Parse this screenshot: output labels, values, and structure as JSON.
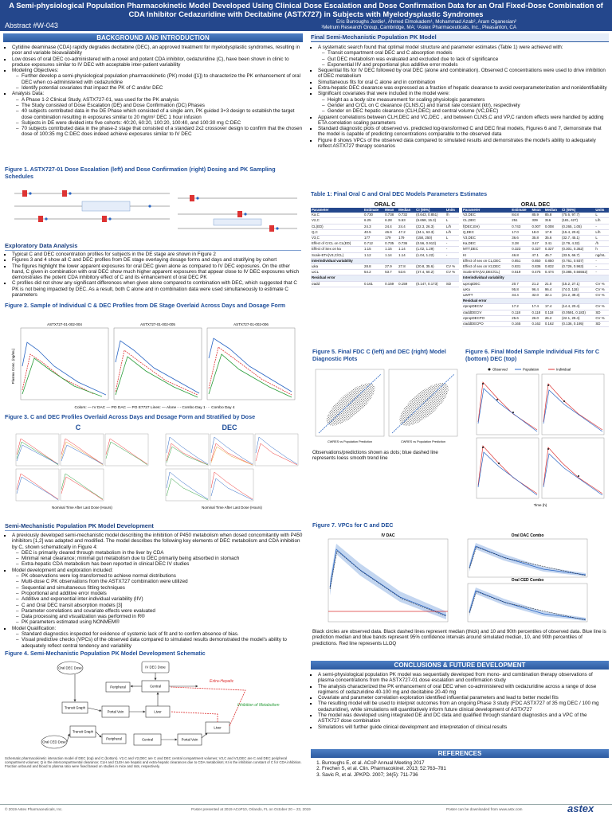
{
  "header": {
    "title": "A Semi-physiological Population Pharmacokinetic Model Developed Using Clinical Dose Escalation and Dose Confirmation Data for an Oral Fixed-Dose Combination of CDA Inhibitor Cedazuridine with Decitabine (ASTX727) in Subjects with Myelodysplastic Syndromes",
    "abstract": "Abstract #W-043",
    "authors": "Eric Burroughs Jordie¹, Ahmed Elmokadem¹, Mohammad Azab², Aram Oganesian²",
    "affiliations": "¹Metrum Research Group, Cambridge, MA; ²Astex Pharmaceuticals, Inc., Pleasanton, CA"
  },
  "background": {
    "heading": "BACKGROUND AND INTRODUCTION",
    "items": [
      {
        "text": "Cytidine deaminase (CDA) rapidly degrades decitabine (DEC), an approved treatment for myelodysplastic syndromes, resulting in poor and variable bioavailability"
      },
      {
        "text": "Low doses of oral DEC co-administered with a novel and potent CDA inhibitor, cedazuridine (C), have been shown in clinic to produce exposures similar to IV DEC with acceptable inter-patient variability"
      },
      {
        "text": "Modeling Objectives:",
        "sub": [
          "Further develop a semi-physiological population pharmacokinetic (PK) model ([1]) to characterize the PK enhancement of oral DEC when co-administered with cedazuridine",
          "Identify potential covariates that impact the PK of C and/or DEC"
        ]
      },
      {
        "text": "Analysis Data:",
        "sub": [
          "A Phase 1-2 Clinical Study, ASTX727-01, was used for the PK analysis",
          "The Study consisted of Dose Escalation (DE) and Dose Confirmation (DC) Phases",
          "40 subjects contributed data in the DE Phase which consisted of a single arm, PK guided 3+3 design to establish the target dose combination resulting in exposures similar to 20 mg/m² DEC 1 hour infusion",
          "Subjects in DE were divided into five cohorts: 40:20, 60:20, 100:20, 100:40, and 100:30 mg C:DEC",
          "70 subjects contributed data in the phase-2 stage that consisted of a standard 2x2 crossover design to confirm that the chosen dose of 100:35 mg C:DEC does indeed achieve exposures similar to IV DEC"
        ]
      }
    ]
  },
  "figure1": {
    "caption": "Figure 1. ASTX727-01 Dose Escalation (left) and Dose Confirmation (right) Dosing and PK Sampling Schedules"
  },
  "exploratory": {
    "heading": "Exploratory Data Analysis",
    "items": [
      {
        "text": "Typical C and DEC concentration profiles for subjects in the DE stage are shown in Figure 2"
      },
      {
        "text": "Figures 3 and 4 show all C and DEC profiles from DE stage overlaying dosage forms and days and stratifying by cohort"
      },
      {
        "text": "The figures highlight the lower apparent exposures for oral DEC given alone as compared to IV DEC exposures. On the other hand, C given in combination with oral DEC show much higher apparent exposures that appear close to IV DEC exposures which demonstrates the potent CDA inhibitory effect of C and its enhancement of oral DEC PK"
      },
      {
        "text": "C profiles did not show any significant differences when given alone compared to combination with DEC, which suggested that C PK is not being impacted by DEC. As a result, both C alone and in combination data were used simultaneously to estimate C parameters"
      }
    ]
  },
  "figure2": {
    "caption": "Figure 2. Sample of Individual C & DEC Profiles from DE Stage Overlaid Across Days and Dosage Form",
    "panels": [
      "ASTX727-01-002-004",
      "ASTX727-01-002-005",
      "ASTX727-01-002-006"
    ],
    "y_label": "Plasma Conc. (ng/mL)",
    "legend": "Colors: — IV DAC — PO DAC — PO E7727    Lines: — Alone - - Combo Day 1 ··· Combo Day 4"
  },
  "figure3": {
    "caption": "Figure 3. C and DEC Profiles Overlaid Across Days and Dosage Form and Stratified by Dose",
    "panels": [
      "C",
      "DEC"
    ],
    "x_label": "Nominal Time After Last Dose (Hours)"
  },
  "model_dev": {
    "heading": "Semi-Mechanistic Population PK Model Development",
    "items": [
      {
        "text": "A previously developed semi-mechanistic model describing the inhibition of P450 metabolism when dosed concomitantly with P450 inhibitors [1,2] was adapted and modified. The model describes the following key elements of DEC metabolism and CDA inhibition by C, shown schematically in Figure 4:",
        "sub": [
          "DEC is primarily cleared through metabolism in the liver by CDA",
          "Minimal renal clearance; minimal gut metabolism due to DEC primarily being absorbed in stomach",
          "Extra-hepatic CDA metabolism has been reported in clinical DEC IV studies"
        ]
      },
      {
        "text": "Model development and exploration included:",
        "sub": [
          "PK observations were log-transformed to achieve normal distributions",
          "Multi-dose C PK observations from the ASTX727 combination were utilized",
          "Sequential and simultaneous fitting techniques",
          "Proportional and additive error models",
          "Additive and exponential inter-individual variability (IIV)",
          "C and Oral DEC transit absorption models [3]",
          "Parameter correlations and covariate effects were evaluated",
          "Data processing and visualization was performed in R®",
          "PK parameters estimated using NONMEM®"
        ]
      },
      {
        "text": "Model Qualification:",
        "sub": [
          "Standard diagnostics inspected for evidence of systemic lack of fit and to confirm absence of bias.",
          "Visual predictive checks (VPCs) of the observed data compared to simulated results demonstrated the model's ability to adequately reflect central tendency and variability"
        ]
      }
    ]
  },
  "figure4": {
    "caption": "Figure 4. Semi-Mechanistic Population PK Model Development Schematic",
    "nodes": [
      "Oral DEC Dose",
      "IV DEC Dose",
      "Central",
      "Peripheral",
      "Transit Graph",
      "Portal Vein",
      "Liver",
      "Oral CED Dose",
      "Central",
      "Peripheral",
      "Transit Graph",
      "Portal Vein",
      "Liver"
    ],
    "labels": [
      "Extra-Hepatic",
      "Inhibition of Metabolism"
    ],
    "note": "Schematic pharmacokinetic interaction model of DEC (top) and C (bottom). V2,C and V2,DEC are C and DEC central compartment volumes; V3,C and V3,DEC are C and DEC peripheral compartment volumes; Q is the intercompartmental clearance; CLH and CLEH are hepatic and extra-hepatic clearances due to CDA metabolism; KI is the inhibition constant of C for CDA inhibition. Fraction unbound and blood to plasma ratio were fixed based on studies in mice and rats, respectively."
  },
  "final_model": {
    "heading": "Final Semi-Mechanistic Population PK Model",
    "items": [
      {
        "text": "A systematic search found that optimal model structure and parameter estimates (Table 1) were achieved with:",
        "sub": [
          "Transit compartment oral DEC and C absorption models",
          "Gut DEC metabolism was evaluated and excluded due to lack of significance",
          "Exponential IIV and proportional plus additive error models"
        ]
      },
      {
        "text": "Sequential fits for IV DEC followed by oral DEC (alone and combination). Observed C concentrations were used to drive inhibition of DEC metabolism"
      },
      {
        "text": "Simultaneous fits for oral C alone and in combination"
      },
      {
        "text": "Extra-hepatic DEC clearance was expressed as a fraction of hepatic clearance to avoid overparameterization and nonidentifiability"
      },
      {
        "text": "Significant covariates that were included in the model were:",
        "sub": [
          "Height as a body size measurement for scaling physiologic parameters",
          "Gender and CrCL on C clearance (CLNS,C) and transit rate constant (ktr), respectively",
          "Gender on DEC hepatic clearance (CLH,DEC) and central volume (VC,DEC)"
        ]
      },
      {
        "text": "Apparent correlations between CLH,DEC and VC,DEC , and between CLNS,C and VP,C random effects were handled by adding ETA correlation scaling parameters"
      },
      {
        "text": "Standard diagnostic plots of observed vs. predicted log-transformed C and DEC final models, Figures 6 and 7, demonstrate that the model is capable of predicting concentrations comparable to the observed data"
      },
      {
        "text": "Figure 8 shows VPCs of the observed data compared to simulated results and demonstrates the model's ability to adequately reflect ASTX727 therapy scenarios"
      }
    ]
  },
  "table1": {
    "caption": "Table 1: Final Oral C and Oral DEC Models Parameters Estimates",
    "oral_c": {
      "title": "ORAL C",
      "headers": [
        "Parameter",
        "Estimate",
        "Mean",
        "Median",
        "CI (95%)",
        "Units"
      ],
      "rows": [
        [
          "Ka,C",
          "0.730",
          "0.738",
          "0.732",
          "(0.643, 0.851)",
          "/h"
        ],
        [
          "V2,C",
          "6.25",
          "6.28",
          "5.53",
          "(5.658, 15.3)",
          "L"
        ],
        [
          "CL(ED)",
          "24.3",
          "24.4",
          "24.4",
          "(22.3, 26.3)",
          "L/h"
        ],
        [
          "Q,C",
          "40.5",
          "46.9",
          "47.2",
          "(34.1, 63.3)",
          "L/h"
        ],
        [
          "V3,C",
          "177",
          "179",
          "179",
          "(158, 250)",
          "L"
        ],
        [
          "Effect of CrCL on CL(ED)",
          "0.712",
          "0.735",
          "0.736",
          "(0.56, 0.913)",
          "-"
        ],
        [
          "Effect of Sex on ka",
          "1.15",
          "1.15",
          "1.14",
          "(1.02, 1.29)",
          "-"
        ],
        [
          "Scale-ETA(V3,C/CL)",
          "1.12",
          "1.14",
          "1.14",
          "(1.04, 1.22)",
          "-"
        ],
        [
          "Interindividual variability"
        ],
        [
          "ωka",
          "28.8",
          "27.9",
          "27.8",
          "(20.8, 35.6)",
          "CV %"
        ],
        [
          "ωCL",
          "54.2",
          "53.7",
          "53.6",
          "(47.4, 60.2)",
          "CV %"
        ],
        [
          "Residual error"
        ],
        [
          "σadd",
          "0.161",
          "0.159",
          "0.159",
          "(0.147, 0.173)",
          "SD"
        ]
      ]
    },
    "oral_dec": {
      "title": "ORAL DEC",
      "headers": [
        "Parameter",
        "Estimate",
        "Mean",
        "Median",
        "CI (95%)",
        "Units"
      ],
      "rows": [
        [
          "V2,DEC",
          "84.8",
          "85.9",
          "85.8",
          "(75.6, 97.7)",
          "L"
        ],
        [
          "CL,DEC",
          "251",
          "339",
          "316",
          "(181, 427)",
          "L/h"
        ],
        [
          "f(DEC,EH)",
          "0.743",
          "0.007",
          "0.008",
          "(0.265, 1.05)",
          "-"
        ],
        [
          "Q,DEC",
          "17.0",
          "18.0",
          "17.9",
          "(15.4, 20.6)",
          "L/h"
        ],
        [
          "V3,DEC",
          "36.6",
          "35.8",
          "35.6",
          "(32.7, 45.1)",
          "L"
        ],
        [
          "Ka,DEC",
          "3.28",
          "3.47",
          "3.41",
          "(2.79, 4.32)",
          "/h"
        ],
        [
          "MTT,DEC",
          "0.323",
          "0.327",
          "0.327",
          "(0.301, 0.352)",
          "h"
        ],
        [
          "KI",
          "46.8",
          "47.1",
          "45.7",
          "(33.5, 66.7)",
          "ng/mL"
        ],
        [
          "Effect of sex on CL,DEC",
          "0.851",
          "0.850",
          "0.850",
          "(0.761, 0.937)",
          "-"
        ],
        [
          "Effect of sex on V2,DEC",
          "0.831",
          "0.836",
          "0.832",
          "(0.726, 0.963)",
          "-"
        ],
        [
          "Scale-ETA(V2,DEC/CL)",
          "0.519",
          "0.475",
          "0.474",
          "(0.385, 0.56552)",
          "-"
        ],
        [
          "Interindividual variability"
        ],
        [
          "ωpropDEC",
          "20.7",
          "21.2",
          "21.0",
          "(15.2, 27.1)",
          "CV %"
        ],
        [
          "ωKa",
          "95.8",
          "96.4",
          "96.4",
          "(74.0, 118)",
          "CV %"
        ],
        [
          "ωMTT",
          "34.4",
          "32.0",
          "32.1",
          "(21.2, 39.3)",
          "CV %"
        ],
        [
          "Residual error"
        ],
        [
          "σpropDECIV",
          "17.2",
          "17.4",
          "17.4",
          "(14.4, 20.4)",
          "CV %"
        ],
        [
          "σaddDECIV",
          "0.118",
          "0.118",
          "0.118",
          "(0.0591, 0.183)",
          "SD"
        ],
        [
          "σpropDECPO",
          "25.6",
          "26.0",
          "26.2",
          "(22.1, 29.4)",
          "CV %"
        ],
        [
          "σaddDECPO",
          "0.165",
          "0.162",
          "0.162",
          "(0.136, 0.195)",
          "SD"
        ]
      ]
    }
  },
  "figure5": {
    "caption": "Figure 5. Final FDC C (left) and DEC (right) Model Diagnostic Plots",
    "note": "Observations/predictions shown as dots; blue dashed line represents loess smooth trend line",
    "x_labels": [
      "CWRES vs Population Prediction",
      "CWRES vs Population Prediction"
    ]
  },
  "figure6": {
    "caption": "Figure 6. Final Model Sample Individual Fits for C (bottom) DEC (top)",
    "legend": [
      "Observed",
      "Population",
      "Individual"
    ],
    "x_label": "Time (h)"
  },
  "figure7": {
    "caption": "Figure 7. VPCs for C and DEC",
    "panels": [
      "IV DAC",
      "Oral DAC Combo",
      "Oral CED Combo"
    ],
    "note": "Black circles are observed data. Black dashed lines represent median (thick) and 10 and 90th percentiles of observed data. Blue line is prediction median and blue bands represent 95% confidence intervals around simulated median, 10, and 90th percentiles of predictions. Red line represents LLOQ"
  },
  "conclusions": {
    "heading": "CONCLUSIONS & FUTURE DEVELOPMENT",
    "items": [
      {
        "text": "A semi-physiological population PK model was sequentially developed from mono- and combination therapy observations of plasma concentrations from the ASTX727-01 dose escalation and confirmation study"
      },
      {
        "text": "The analysis characterized the PK enhancement of oral DEC when co-administered with cedazuridine across a range of dose regimens of cedazuridine 40-100 mg and decitabine 20-40 mg"
      },
      {
        "text": "Covariate and parameter correlation exploration identified influential parameters and lead to better model fits"
      },
      {
        "text": "The resulting model will be used to interpret outcomes from an ongoing Phase 3 study (FDC ASTX727 of 35 mg DEC / 100 mg cedazuridine), while simulations will quantitatively inform future clinical development of ASTX727"
      },
      {
        "text": "The model was developed using integrated DE and DC data and qualified through standard diagnostics and a VPC of the ASTX727 dose combination"
      },
      {
        "text": "Simulations will further guide clinical development and interpretation of clinical results"
      }
    ]
  },
  "references": {
    "heading": "REFERENCES",
    "items": [
      "Burroughs E, et al. ACoP Annual Meeting 2017",
      "Frechen S, et al. Clin. Pharmacokinet. 2013; 52:763–781",
      "Savic R, et al. JPKPD. 2007; 34(5): 711-736"
    ]
  },
  "footer": {
    "copyright": "© 2019 Astex Pharmaceuticals, Inc.",
    "presented": "Poster presented at 2019 ACoP10, Orlando, FL on October 20 – 23, 2019",
    "download": "Poster can be downloaded from www.astx.com",
    "logo": "astex"
  }
}
